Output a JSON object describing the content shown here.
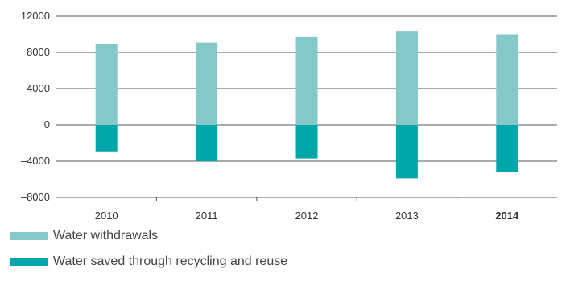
{
  "chart_data": {
    "type": "bar",
    "stacked": true,
    "categories": [
      "2010",
      "2011",
      "2012",
      "2013",
      "2014"
    ],
    "highlight_category": "2014",
    "series": [
      {
        "name": "Water withdrawals",
        "color": "#85c8c8",
        "values": [
          8900,
          9100,
          9700,
          10300,
          10000
        ]
      },
      {
        "name": "Water saved through recycling and reuse",
        "color": "#00a6aa",
        "values": [
          -3000,
          -4000,
          -3700,
          -5900,
          -5200
        ]
      }
    ],
    "ylim": [
      -8000,
      12000
    ],
    "yticks": [
      12000,
      8000,
      4000,
      0,
      -4000,
      -8000
    ],
    "ytick_labels": [
      "12000",
      "8000",
      "4000",
      "0",
      "–4000",
      "–8000"
    ],
    "grid": true,
    "legend_position": "bottom-left",
    "title": "",
    "xlabel": "",
    "ylabel": ""
  }
}
